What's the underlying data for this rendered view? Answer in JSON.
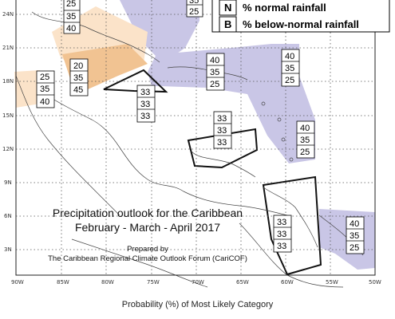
{
  "legend": [
    {
      "key": "N",
      "label": "% normal rainfall"
    },
    {
      "key": "B",
      "label": "% below-normal rainfall"
    }
  ],
  "title_line1": "Precipitation outlook for the Caribbean",
  "title_line2": "February - March - April 2017",
  "credit_line1": "Prepared by",
  "credit_line2": "The Caribbean Regional Climate Outlook Forum (CariCOF)",
  "caption": "Probability (%) of Most Likely Category",
  "lat_labels": [
    "24N",
    "21N",
    "18N",
    "15N",
    "12N",
    "9N",
    "6N",
    "3N"
  ],
  "lon_labels": [
    "90W",
    "85W",
    "80W",
    "75W",
    "70W",
    "65W",
    "60W",
    "55W",
    "50W"
  ],
  "probability_boxes": [
    {
      "id": "top-left-partial",
      "values": [
        "25",
        "35",
        "40"
      ]
    },
    {
      "id": "top-center-partial",
      "values": [
        "35",
        "25"
      ]
    },
    {
      "id": "yucatan",
      "values": [
        "25",
        "35",
        "40"
      ]
    },
    {
      "id": "cuba",
      "values": [
        "20",
        "35",
        "45"
      ]
    },
    {
      "id": "haiti-jamaica",
      "values": [
        "33",
        "33",
        "33"
      ]
    },
    {
      "id": "hispaniola",
      "values": [
        "40",
        "35",
        "25"
      ]
    },
    {
      "id": "eastern-caribbean",
      "values": [
        "40",
        "35",
        "25"
      ]
    },
    {
      "id": "abc-islands",
      "values": [
        "33",
        "33",
        "33"
      ]
    },
    {
      "id": "windward-islands",
      "values": [
        "40",
        "35",
        "25"
      ]
    },
    {
      "id": "guianas",
      "values": [
        "33",
        "33",
        "33"
      ]
    },
    {
      "id": "french-guiana",
      "values": [
        "40",
        "35",
        "25"
      ]
    }
  ],
  "colors": {
    "below_normal": "#c9c6e6",
    "above_normal_light": "#fbe3c9",
    "above_normal_strong": "#f1c392"
  }
}
